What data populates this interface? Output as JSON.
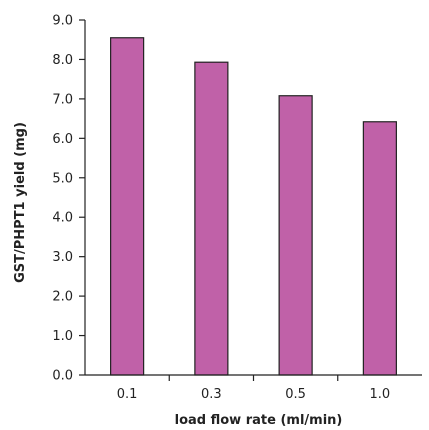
{
  "chart_data": {
    "type": "bar",
    "title": "",
    "xlabel": "load flow rate (ml/min)",
    "ylabel": "GST/PHPT1 yield (mg)",
    "categories": [
      "0.1",
      "0.3",
      "0.5",
      "1.0"
    ],
    "values": [
      8.55,
      7.93,
      7.08,
      6.42
    ],
    "ylim": [
      0,
      9
    ],
    "yticks": [
      "0.0",
      "1.0",
      "2.0",
      "3.0",
      "4.0",
      "5.0",
      "6.0",
      "7.0",
      "8.0",
      "9.0"
    ],
    "grid": false,
    "legend": "none",
    "colors": {
      "bar_fill": "#c061a8",
      "bar_stroke": "#222222",
      "axis": "#222222"
    }
  }
}
